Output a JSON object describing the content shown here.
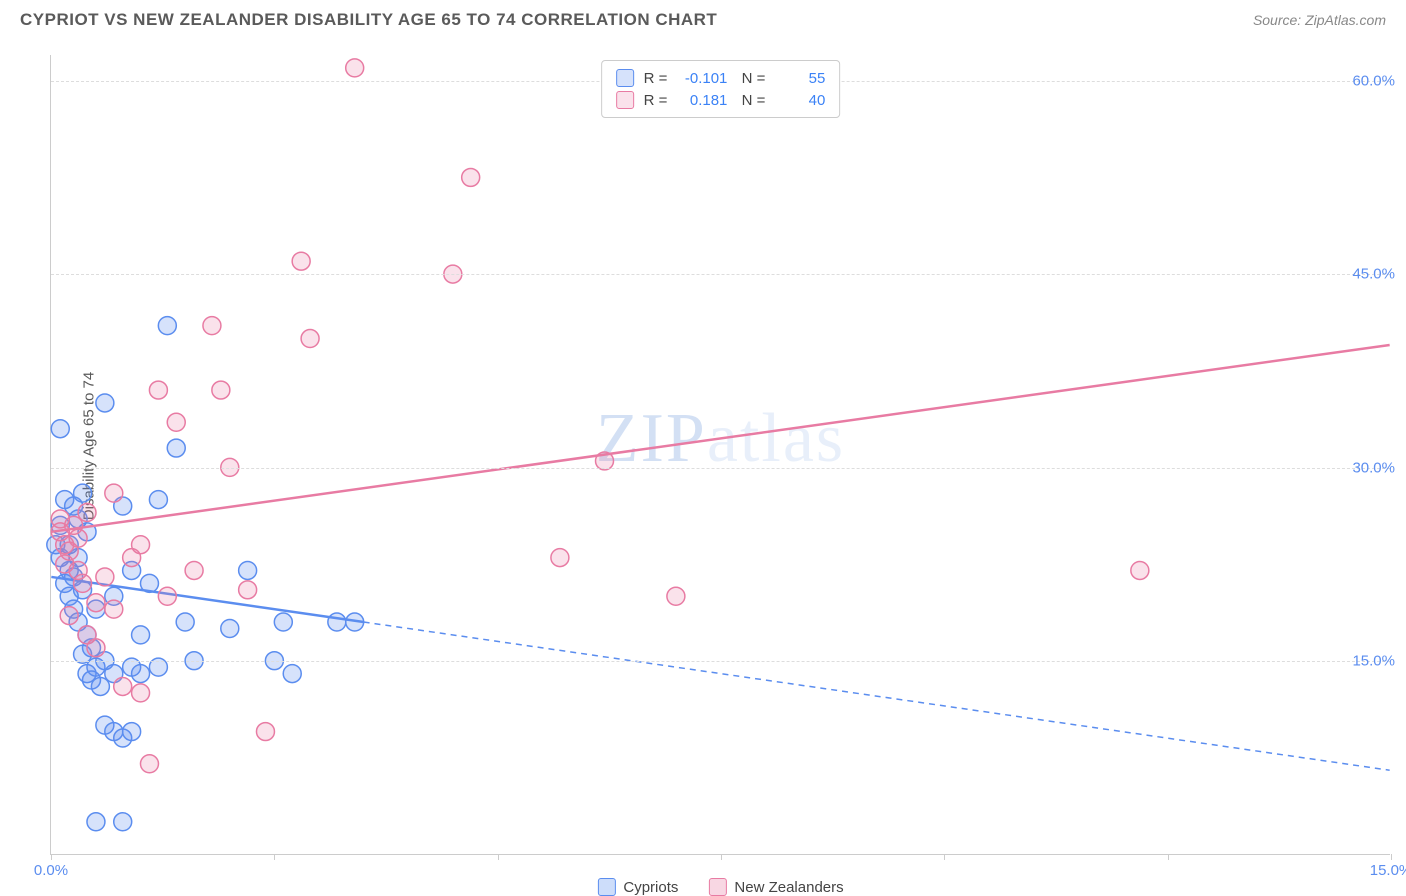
{
  "title": "CYPRIOT VS NEW ZEALANDER DISABILITY AGE 65 TO 74 CORRELATION CHART",
  "source": "Source: ZipAtlas.com",
  "y_label": "Disability Age 65 to 74",
  "watermark": "ZIPatlas",
  "chart": {
    "type": "scatter",
    "background_color": "#ffffff",
    "grid_color": "#dddddd",
    "axis_color": "#cccccc",
    "tick_label_color": "#5b8def",
    "x_min": 0.0,
    "x_max": 15.0,
    "y_min": 0.0,
    "y_max": 62.0,
    "x_ticks": [
      0.0,
      2.5,
      5.0,
      7.5,
      10.0,
      12.5,
      15.0
    ],
    "x_tick_labels": [
      "0.0%",
      "",
      "",
      "",
      "",
      "",
      "15.0%"
    ],
    "y_gridlines": [
      15.0,
      30.0,
      45.0,
      60.0
    ],
    "y_tick_labels": [
      "15.0%",
      "30.0%",
      "45.0%",
      "60.0%"
    ],
    "marker_radius": 9,
    "marker_fill_opacity": 0.25,
    "marker_stroke_width": 1.5,
    "line_width": 2.5,
    "series": [
      {
        "name": "Cypriots",
        "color": "#5b8def",
        "fill": "rgba(91,141,239,0.25)",
        "r": "-0.101",
        "n": "55",
        "trend_solid": [
          [
            0.0,
            21.5
          ],
          [
            3.5,
            18.0
          ]
        ],
        "trend_dashed": [
          [
            3.5,
            18.0
          ],
          [
            15.0,
            6.5
          ]
        ],
        "points": [
          [
            0.05,
            24.0
          ],
          [
            0.1,
            23.0
          ],
          [
            0.1,
            25.5
          ],
          [
            0.1,
            33.0
          ],
          [
            0.15,
            21.0
          ],
          [
            0.15,
            27.5
          ],
          [
            0.2,
            20.0
          ],
          [
            0.2,
            22.0
          ],
          [
            0.2,
            24.0
          ],
          [
            0.25,
            19.0
          ],
          [
            0.25,
            21.5
          ],
          [
            0.25,
            27.0
          ],
          [
            0.3,
            18.0
          ],
          [
            0.3,
            23.0
          ],
          [
            0.3,
            26.0
          ],
          [
            0.35,
            15.5
          ],
          [
            0.35,
            20.5
          ],
          [
            0.35,
            28.0
          ],
          [
            0.4,
            14.0
          ],
          [
            0.4,
            17.0
          ],
          [
            0.4,
            25.0
          ],
          [
            0.45,
            13.5
          ],
          [
            0.45,
            16.0
          ],
          [
            0.5,
            2.5
          ],
          [
            0.5,
            14.5
          ],
          [
            0.5,
            19.0
          ],
          [
            0.55,
            13.0
          ],
          [
            0.6,
            10.0
          ],
          [
            0.6,
            15.0
          ],
          [
            0.6,
            35.0
          ],
          [
            0.7,
            9.5
          ],
          [
            0.7,
            14.0
          ],
          [
            0.7,
            20.0
          ],
          [
            0.8,
            2.5
          ],
          [
            0.8,
            9.0
          ],
          [
            0.8,
            27.0
          ],
          [
            0.9,
            9.5
          ],
          [
            0.9,
            14.5
          ],
          [
            0.9,
            22.0
          ],
          [
            1.0,
            14.0
          ],
          [
            1.0,
            17.0
          ],
          [
            1.1,
            21.0
          ],
          [
            1.2,
            14.5
          ],
          [
            1.2,
            27.5
          ],
          [
            1.3,
            41.0
          ],
          [
            1.4,
            31.5
          ],
          [
            1.5,
            18.0
          ],
          [
            1.6,
            15.0
          ],
          [
            2.0,
            17.5
          ],
          [
            2.2,
            22.0
          ],
          [
            2.5,
            15.0
          ],
          [
            2.6,
            18.0
          ],
          [
            2.7,
            14.0
          ],
          [
            3.2,
            18.0
          ],
          [
            3.4,
            18.0
          ]
        ]
      },
      {
        "name": "New Zealanders",
        "color": "#e87ba3",
        "fill": "rgba(232,123,163,0.22)",
        "r": "0.181",
        "n": "40",
        "trend_solid": [
          [
            0.0,
            25.0
          ],
          [
            15.0,
            39.5
          ]
        ],
        "trend_dashed": null,
        "points": [
          [
            0.1,
            25.0
          ],
          [
            0.1,
            26.0
          ],
          [
            0.15,
            22.5
          ],
          [
            0.15,
            24.0
          ],
          [
            0.2,
            18.5
          ],
          [
            0.2,
            23.5
          ],
          [
            0.25,
            25.5
          ],
          [
            0.3,
            22.0
          ],
          [
            0.3,
            24.5
          ],
          [
            0.35,
            21.0
          ],
          [
            0.4,
            17.0
          ],
          [
            0.4,
            26.5
          ],
          [
            0.5,
            16.0
          ],
          [
            0.5,
            19.5
          ],
          [
            0.6,
            21.5
          ],
          [
            0.7,
            19.0
          ],
          [
            0.7,
            28.0
          ],
          [
            0.8,
            13.0
          ],
          [
            0.9,
            23.0
          ],
          [
            1.0,
            12.5
          ],
          [
            1.0,
            24.0
          ],
          [
            1.1,
            7.0
          ],
          [
            1.2,
            36.0
          ],
          [
            1.3,
            20.0
          ],
          [
            1.4,
            33.5
          ],
          [
            1.6,
            22.0
          ],
          [
            1.8,
            41.0
          ],
          [
            1.9,
            36.0
          ],
          [
            2.0,
            30.0
          ],
          [
            2.2,
            20.5
          ],
          [
            2.4,
            9.5
          ],
          [
            2.8,
            46.0
          ],
          [
            2.9,
            40.0
          ],
          [
            3.4,
            61.0
          ],
          [
            4.5,
            45.0
          ],
          [
            4.7,
            52.5
          ],
          [
            5.7,
            23.0
          ],
          [
            6.2,
            30.5
          ],
          [
            7.0,
            20.0
          ],
          [
            12.2,
            22.0
          ]
        ]
      }
    ]
  },
  "legend_bottom": [
    {
      "label": "Cypriots",
      "color": "#5b8def",
      "fill": "rgba(91,141,239,0.3)"
    },
    {
      "label": "New Zealanders",
      "color": "#e87ba3",
      "fill": "rgba(232,123,163,0.3)"
    }
  ]
}
